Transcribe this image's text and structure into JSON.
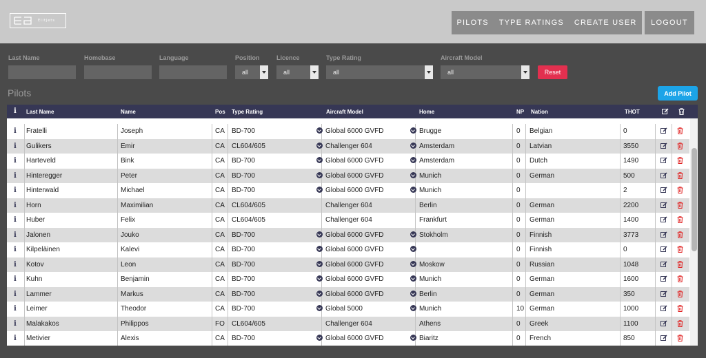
{
  "header": {
    "logo_text": "Elitjets",
    "nav": [
      "PILOTS",
      "TYPE RATINGS",
      "CREATE USER"
    ],
    "logout": "LOGOUT"
  },
  "filters": {
    "labels": {
      "last_name": "Last Name",
      "homebase": "Homebase",
      "language": "Language",
      "position": "Position",
      "licence": "Licence",
      "type_rating": "Type Rating",
      "aircraft_model": "Aircraft Model"
    },
    "values": {
      "position": "all",
      "licence": "all",
      "type_rating": "all",
      "aircraft_model": "all"
    },
    "reset": "Reset"
  },
  "section": {
    "title": "Pilots",
    "add_button": "Add Pilot"
  },
  "table": {
    "headers": {
      "info": "i",
      "last_name": "Last Name",
      "name": "Name",
      "pos": "Pos",
      "type_rating": "Type Rating",
      "aircraft_model": "Aircraft Model",
      "home": "Home",
      "np": "NP",
      "nation": "Nation",
      "thot": "THOT"
    },
    "rows": [
      {
        "last": "Fratelli",
        "name": "Joseph",
        "pos": "CA",
        "type": "BD-700",
        "model": "Global 6000 GVFD",
        "home": "Brugge",
        "np": "0",
        "nation": "Belgian",
        "thot": "0",
        "c1": true,
        "c2": true
      },
      {
        "last": "Gulikers",
        "name": "Emir",
        "pos": "CA",
        "type": "CL604/605",
        "model": "Challenger 604",
        "home": "Amsterdam",
        "np": "0",
        "nation": "Latvian",
        "thot": "3550",
        "c1": true,
        "c2": true
      },
      {
        "last": "Harteveld",
        "name": "Bink",
        "pos": "CA",
        "type": "BD-700",
        "model": "Global 6000 GVFD",
        "home": "Amsterdam",
        "np": "0",
        "nation": "Dutch",
        "thot": "1490",
        "c1": true,
        "c2": true
      },
      {
        "last": "Hinteregger",
        "name": "Peter",
        "pos": "CA",
        "type": "BD-700",
        "model": "Global 6000 GVFD",
        "home": "Munich",
        "np": "0",
        "nation": "German",
        "thot": "500",
        "c1": true,
        "c2": true
      },
      {
        "last": "Hinterwald",
        "name": "Michael",
        "pos": "CA",
        "type": "BD-700",
        "model": "Global 6000 GVFD",
        "home": "Munich",
        "np": "0",
        "nation": "",
        "thot": "2",
        "c1": true,
        "c2": true
      },
      {
        "last": "Horn",
        "name": "Maximilian",
        "pos": "CA",
        "type": "CL604/605",
        "model": "Challenger 604",
        "home": "Berlin",
        "np": "0",
        "nation": "German",
        "thot": "2200",
        "c1": false,
        "c2": false
      },
      {
        "last": "Huber",
        "name": "Felix",
        "pos": "CA",
        "type": "CL604/605",
        "model": "Challenger 604",
        "home": "Frankfurt",
        "np": "0",
        "nation": "German",
        "thot": "1400",
        "c1": false,
        "c2": false
      },
      {
        "last": "Jalonen",
        "name": "Jouko",
        "pos": "CA",
        "type": "BD-700",
        "model": "Global 6000 GVFD",
        "home": "Stokholm",
        "np": "0",
        "nation": "Finnish",
        "thot": "3773",
        "c1": true,
        "c2": true
      },
      {
        "last": "Kilpeläinen",
        "name": "Kalevi",
        "pos": "CA",
        "type": "BD-700",
        "model": "Global 6000 GVFD",
        "home": "",
        "np": "0",
        "nation": "Finnish",
        "thot": "0",
        "c1": true,
        "c2": true
      },
      {
        "last": "Kotov",
        "name": "Leon",
        "pos": "CA",
        "type": "BD-700",
        "model": "Global 6000 GVFD",
        "home": "Moskow",
        "np": "0",
        "nation": "Russian",
        "thot": "1048",
        "c1": true,
        "c2": true
      },
      {
        "last": "Kuhn",
        "name": "Benjamin",
        "pos": "CA",
        "type": "BD-700",
        "model": "Global 6000 GVFD",
        "home": "Munich",
        "np": "0",
        "nation": "German",
        "thot": "1600",
        "c1": true,
        "c2": true
      },
      {
        "last": "Lammer",
        "name": "Markus",
        "pos": "CA",
        "type": "BD-700",
        "model": "Global 6000 GVFD",
        "home": "Berlin",
        "np": "0",
        "nation": "German",
        "thot": "350",
        "c1": true,
        "c2": true
      },
      {
        "last": "Leimer",
        "name": "Theodor",
        "pos": "CA",
        "type": "BD-700",
        "model": "Global 5000",
        "home": "Munich",
        "np": "10",
        "nation": "German",
        "thot": "1000",
        "c1": true,
        "c2": true
      },
      {
        "last": "Malakakos",
        "name": "Philippos",
        "pos": "FO",
        "type": "CL604/605",
        "model": "Challenger 604",
        "home": "Athens",
        "np": "0",
        "nation": "Greek",
        "thot": "1100",
        "c1": false,
        "c2": false
      },
      {
        "last": "Metivier",
        "name": "Alexis",
        "pos": "CA",
        "type": "BD-700",
        "model": "Global 6000 GVFD",
        "home": "Biaritz",
        "np": "0",
        "nation": "French",
        "thot": "850",
        "c1": true,
        "c2": true
      }
    ]
  },
  "colors": {
    "header_bg": "#363755",
    "reset": "#e2304f",
    "add": "#1ca4e8",
    "trash": "#e02020"
  }
}
